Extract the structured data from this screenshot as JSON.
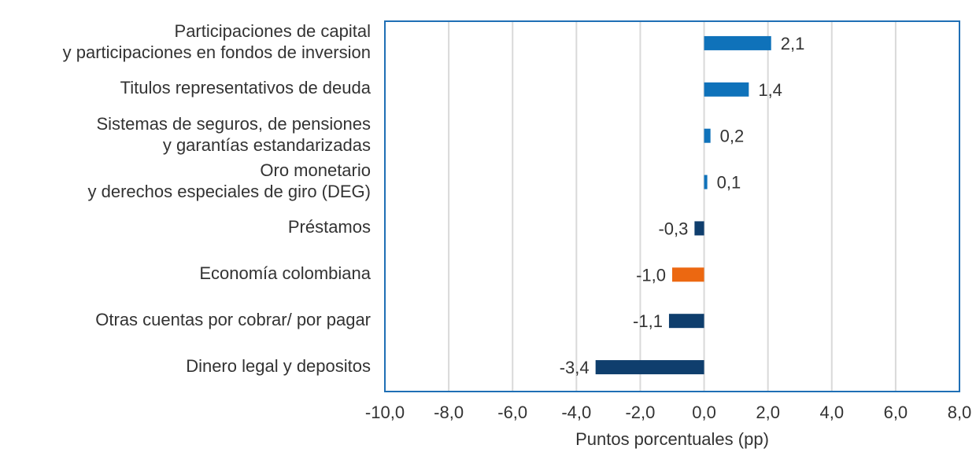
{
  "chart_data": {
    "type": "bar",
    "orientation": "horizontal",
    "categories": [
      "Participaciones de capital\ny participaciones en fondos de inversion",
      "Titulos representativos de deuda",
      "Sistemas de seguros, de pensiones\ny garantías estandarizadas",
      "Oro monetario\ny derechos especiales de giro (DEG)",
      "Préstamos",
      "Economía colombiana",
      "Otras cuentas por cobrar/ por pagar",
      "Dinero legal y depositos"
    ],
    "values": [
      2.1,
      1.4,
      0.2,
      0.1,
      -0.3,
      -1.0,
      -1.1,
      -3.4
    ],
    "data_labels": [
      "2,1",
      "1,4",
      "0,2",
      "0,1",
      "-0,3",
      "-1,0",
      "-1,1",
      "-3,4"
    ],
    "colors": [
      "#0f72ba",
      "#0f72ba",
      "#0f72ba",
      "#0f72ba",
      "#0f3e6d",
      "#ec6811",
      "#0f3e6d",
      "#0f3e6d"
    ],
    "xlabel": "Puntos porcentuales (pp)",
    "ylabel": "",
    "xlim": [
      -10,
      8
    ],
    "xticks": [
      -10,
      -8,
      -6,
      -4,
      -2,
      0,
      2,
      4,
      6,
      8
    ],
    "xtick_labels": [
      "-10,0",
      "-8,0",
      "-6,0",
      "-4,0",
      "-2,0",
      "0,0",
      "2,0",
      "4,0",
      "6,0",
      "8,0"
    ],
    "grid": "vertical",
    "frame_color": "#1f6fb5"
  }
}
